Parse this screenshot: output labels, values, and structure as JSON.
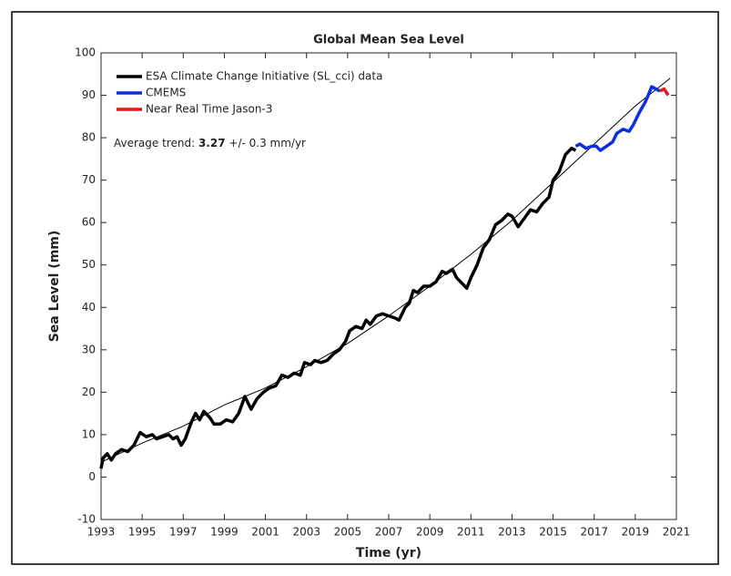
{
  "chart_data": {
    "type": "line",
    "title": "Global Mean Sea Level",
    "xlabel": "Time (yr)",
    "ylabel": "Sea Level (mm)",
    "annotation": {
      "label": "Average trend:",
      "value": "3.27",
      "rest": "+/- 0.3 mm/yr"
    },
    "xlim": [
      1993,
      2021
    ],
    "xticks": [
      1993,
      1995,
      1997,
      1999,
      2001,
      2003,
      2005,
      2007,
      2009,
      2011,
      2013,
      2015,
      2017,
      2019,
      2021
    ],
    "ylim": [
      -10,
      100
    ],
    "yticks": [
      -10,
      0,
      10,
      20,
      30,
      40,
      50,
      60,
      70,
      80,
      90,
      100
    ],
    "legend": "upper left",
    "series": [
      {
        "name": "ESA Climate Change Initiative (SL_cci) data",
        "color": "#000000",
        "x": [
          1993.0,
          1993.1,
          1993.3,
          1993.5,
          1993.7,
          1994.0,
          1994.3,
          1994.6,
          1994.9,
          1995.2,
          1995.5,
          1995.7,
          1996.0,
          1996.3,
          1996.5,
          1996.7,
          1996.9,
          1997.1,
          1997.4,
          1997.6,
          1997.8,
          1998.0,
          1998.3,
          1998.5,
          1998.8,
          1999.1,
          1999.4,
          1999.7,
          2000.0,
          2000.3,
          2000.6,
          2000.9,
          2001.2,
          2001.5,
          2001.8,
          2002.1,
          2002.4,
          2002.7,
          2002.9,
          2003.2,
          2003.4,
          2003.7,
          2004.0,
          2004.3,
          2004.6,
          2004.9,
          2005.1,
          2005.4,
          2005.7,
          2005.9,
          2006.1,
          2006.4,
          2006.7,
          2007.0,
          2007.3,
          2007.5,
          2007.8,
          2008.0,
          2008.2,
          2008.4,
          2008.7,
          2009.0,
          2009.3,
          2009.6,
          2009.8,
          2010.1,
          2010.3,
          2010.5,
          2010.8,
          2011.0,
          2011.3,
          2011.6,
          2011.9,
          2012.2,
          2012.5,
          2012.8,
          2013.0,
          2013.3,
          2013.6,
          2013.9,
          2014.2,
          2014.5,
          2014.8,
          2015.0,
          2015.3,
          2015.6,
          2015.9,
          2016.1
        ],
        "values": [
          2,
          4.5,
          5.5,
          4,
          5.5,
          6.5,
          6,
          7.5,
          10.5,
          9.5,
          10,
          9,
          9.5,
          10,
          9,
          9.5,
          7.5,
          9,
          13,
          15,
          13.5,
          15.5,
          14,
          12.5,
          12.5,
          13.5,
          13,
          15,
          19,
          16,
          18.5,
          20,
          21,
          21.5,
          24,
          23.5,
          24.5,
          24,
          27,
          26.5,
          27.5,
          27,
          27.5,
          29,
          30,
          32,
          34.5,
          35.5,
          35,
          37,
          36,
          38,
          38.5,
          38,
          37.5,
          37,
          40,
          41,
          44,
          43.5,
          45,
          45,
          46,
          48.5,
          48,
          49,
          47,
          46,
          44.5,
          47,
          50,
          54,
          56,
          59.5,
          60.5,
          62,
          61.5,
          59,
          61,
          63,
          62.5,
          64.5,
          66,
          70,
          72,
          76,
          77.5,
          77
        ]
      },
      {
        "name": "CMEMS",
        "color": "#0a2ee0",
        "x": [
          2016.1,
          2016.3,
          2016.6,
          2016.9,
          2017.1,
          2017.3,
          2017.6,
          2017.9,
          2018.1,
          2018.4,
          2018.7,
          2018.9,
          2019.2,
          2019.5,
          2019.8,
          2020.0,
          2020.2
        ],
        "values": [
          78,
          78.5,
          77.5,
          78,
          78,
          77,
          78,
          79,
          81,
          82,
          81.5,
          83,
          86,
          88.5,
          92,
          91.5,
          91
        ]
      },
      {
        "name": "Near Real Time Jason-3",
        "color": "#e8141c",
        "x": [
          2020.2,
          2020.4,
          2020.6
        ],
        "values": [
          91,
          91.5,
          90
        ]
      }
    ],
    "fit": {
      "color": "#000000",
      "x": [
        1993,
        1995,
        1997,
        1999,
        2001,
        2003,
        2005,
        2007,
        2009,
        2011,
        2013,
        2015,
        2017,
        2019,
        2020.7
      ],
      "values": [
        3.5,
        8,
        12,
        17,
        21,
        26,
        31.5,
        38,
        45,
        52.5,
        60.5,
        69.5,
        78.5,
        87.5,
        94
      ]
    }
  }
}
